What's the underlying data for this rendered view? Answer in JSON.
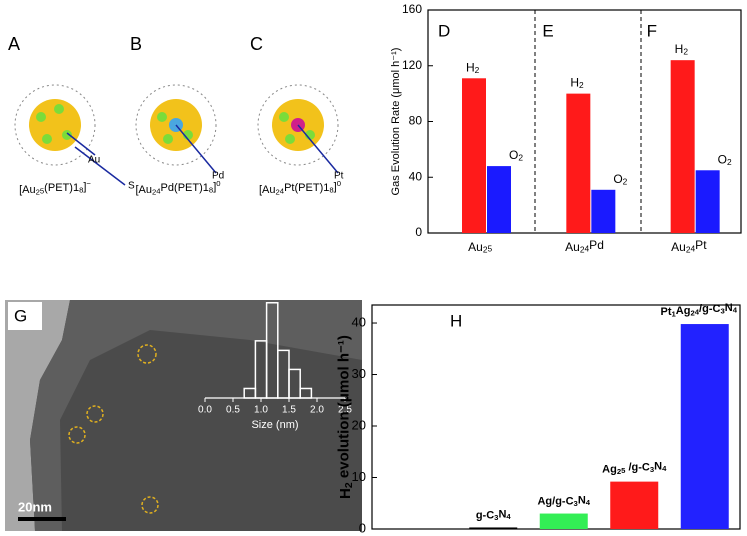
{
  "panels": [
    {
      "label": "A",
      "caption": "[Au25(PET)18]−",
      "pointers": [
        "Au",
        "S"
      ]
    },
    {
      "label": "B",
      "caption": "[Au24Pd(PET)18]0",
      "pointers": [
        "Pd"
      ]
    },
    {
      "label": "C",
      "caption": "[Au24Pt(PET)18]0",
      "pointers": [
        "Pt"
      ]
    }
  ],
  "chart_data": [
    {
      "type": "bar",
      "ylabel": "Gas Evolution Rate (μmol h⁻¹)",
      "panel_labels": [
        "D",
        "E",
        "F"
      ],
      "categories": [
        "Au25",
        "Au24Pd",
        "Au24Pt"
      ],
      "series": [
        {
          "name": "H2",
          "color": "#ff1a1a",
          "values": [
            111,
            100,
            124
          ]
        },
        {
          "name": "O2",
          "color": "#1a1aff",
          "values": [
            48,
            31,
            45
          ]
        }
      ],
      "ylim": [
        0,
        160
      ],
      "yticks": [
        0,
        40,
        80,
        120,
        160
      ]
    },
    {
      "type": "histogram",
      "panel_label": "G",
      "xlabel": "Size (nm)",
      "scale_bar": "20nm",
      "bins": [
        0.7,
        0.9,
        1.1,
        1.3,
        1.5,
        1.7,
        1.9
      ],
      "counts": [
        1,
        6,
        10,
        5,
        3,
        1
      ],
      "xlim": [
        0,
        2.5
      ],
      "xticks": [
        {
          "value": 0,
          "label": "0.0"
        },
        0.5,
        {
          "value": 1,
          "label": "1.0"
        },
        1.5,
        {
          "value": 2,
          "label": "2.0"
        },
        2.5
      ],
      "ylim": [
        0,
        10.5
      ]
    },
    {
      "type": "bar",
      "panel_label": "H",
      "ylabel": "H2 evolution (μmol h⁻¹)",
      "categories": [
        "g-C3N4",
        "Ag/g-C3N4",
        "Ag25 /g-C3N4",
        "Pt1Ag24/g-C3N4"
      ],
      "colors": [
        "#000000",
        "#33ee55",
        "#ff1a1a",
        "#2222ff"
      ],
      "values": [
        0.3,
        3,
        9.2,
        39.8
      ],
      "ylim": [
        0,
        43.5
      ],
      "yticks": [
        0,
        10,
        20,
        30,
        40
      ]
    }
  ]
}
